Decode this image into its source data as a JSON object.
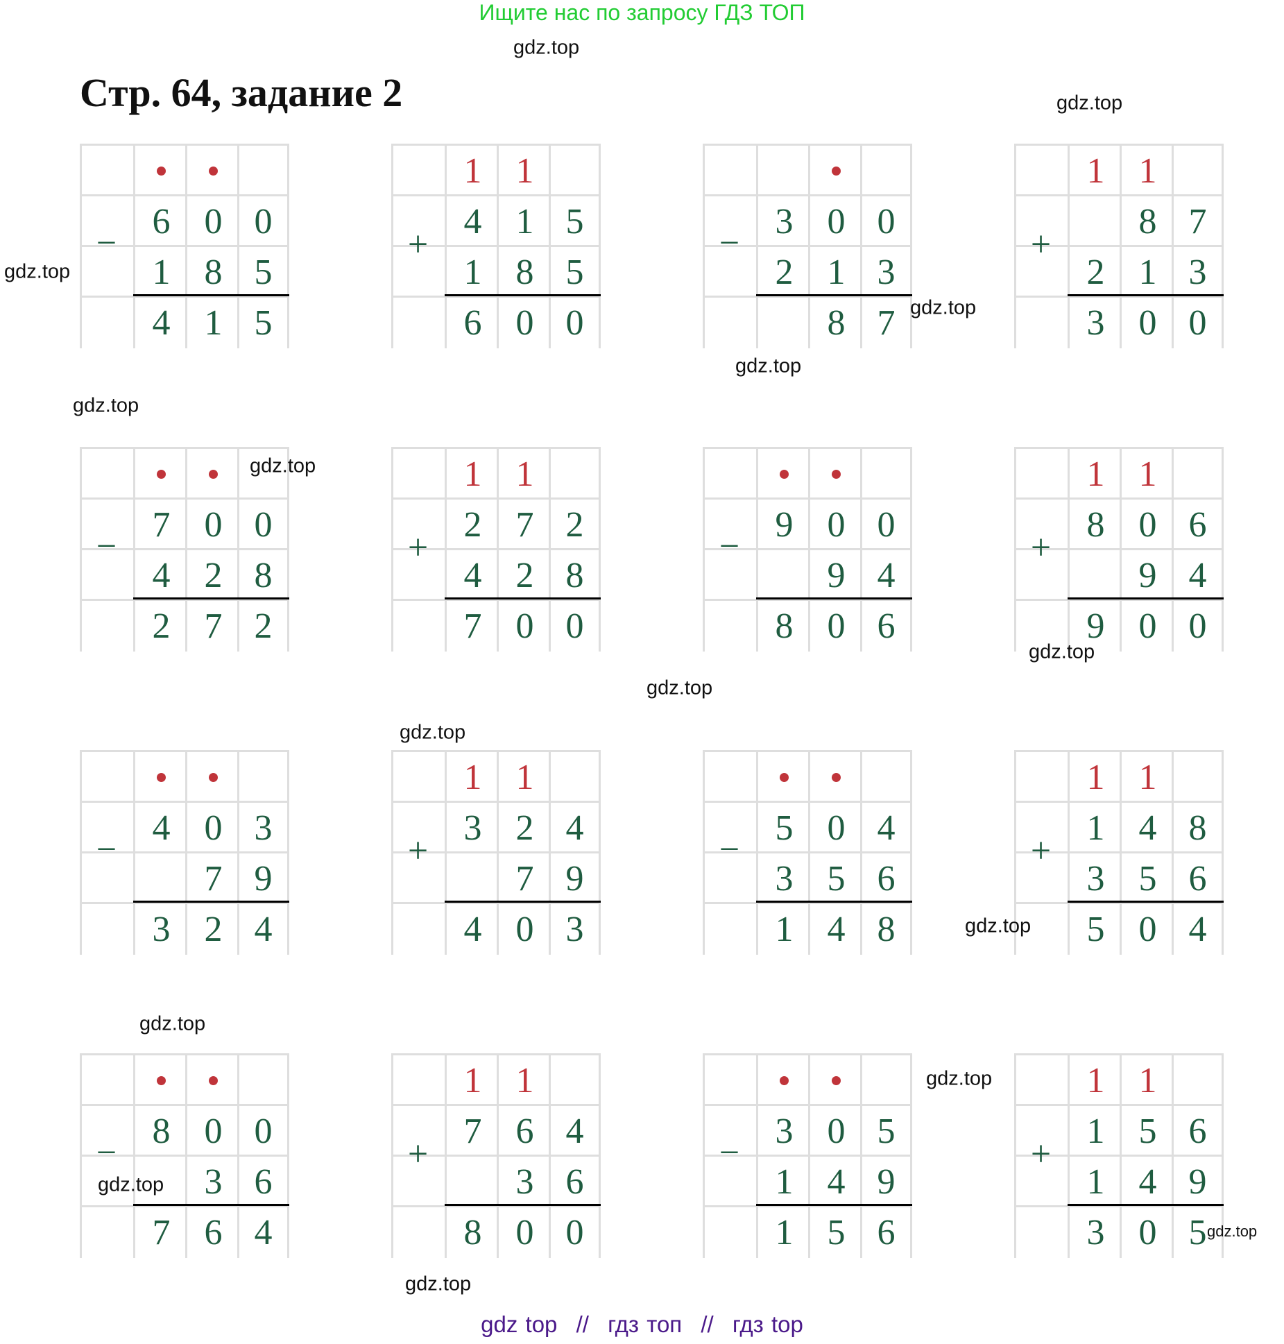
{
  "banner": "Ищите нас по запросу ГДЗ ТОП",
  "title": "Стр. 64, задание 2",
  "watermark": "gdz.top",
  "footer": [
    "gdz top",
    "//",
    "гдз топ",
    "//",
    "гдз top"
  ],
  "colors": {
    "digits": "#1f5c40",
    "carry": "#c0343a",
    "banner": "#22cc33",
    "footer": "#4b1a8a"
  },
  "examples": [
    {
      "op": "−",
      "carry": [
        "•",
        "•",
        ""
      ],
      "a": [
        "6",
        "0",
        "0"
      ],
      "b": [
        "1",
        "8",
        "5"
      ],
      "r": [
        "4",
        "1",
        "5"
      ]
    },
    {
      "op": "+",
      "carry": [
        "1",
        "1",
        ""
      ],
      "a": [
        "4",
        "1",
        "5"
      ],
      "b": [
        "1",
        "8",
        "5"
      ],
      "r": [
        "6",
        "0",
        "0"
      ]
    },
    {
      "op": "−",
      "carry": [
        "",
        "•",
        ""
      ],
      "a": [
        "3",
        "0",
        "0"
      ],
      "b": [
        "2",
        "1",
        "3"
      ],
      "r": [
        "",
        "8",
        "7"
      ]
    },
    {
      "op": "+",
      "carry": [
        "1",
        "1",
        ""
      ],
      "a": [
        "",
        "8",
        "7"
      ],
      "b": [
        "2",
        "1",
        "3"
      ],
      "r": [
        "3",
        "0",
        "0"
      ]
    },
    {
      "op": "−",
      "carry": [
        "•",
        "•",
        ""
      ],
      "a": [
        "7",
        "0",
        "0"
      ],
      "b": [
        "4",
        "2",
        "8"
      ],
      "r": [
        "2",
        "7",
        "2"
      ]
    },
    {
      "op": "+",
      "carry": [
        "1",
        "1",
        ""
      ],
      "a": [
        "2",
        "7",
        "2"
      ],
      "b": [
        "4",
        "2",
        "8"
      ],
      "r": [
        "7",
        "0",
        "0"
      ]
    },
    {
      "op": "−",
      "carry": [
        "•",
        "•",
        ""
      ],
      "a": [
        "9",
        "0",
        "0"
      ],
      "b": [
        "",
        "9",
        "4"
      ],
      "r": [
        "8",
        "0",
        "6"
      ]
    },
    {
      "op": "+",
      "carry": [
        "1",
        "1",
        ""
      ],
      "a": [
        "8",
        "0",
        "6"
      ],
      "b": [
        "",
        "9",
        "4"
      ],
      "r": [
        "9",
        "0",
        "0"
      ]
    },
    {
      "op": "−",
      "carry": [
        "•",
        "•",
        ""
      ],
      "a": [
        "4",
        "0",
        "3"
      ],
      "b": [
        "",
        "7",
        "9"
      ],
      "r": [
        "3",
        "2",
        "4"
      ]
    },
    {
      "op": "+",
      "carry": [
        "1",
        "1",
        ""
      ],
      "a": [
        "3",
        "2",
        "4"
      ],
      "b": [
        "",
        "7",
        "9"
      ],
      "r": [
        "4",
        "0",
        "3"
      ]
    },
    {
      "op": "−",
      "carry": [
        "•",
        "•",
        ""
      ],
      "a": [
        "5",
        "0",
        "4"
      ],
      "b": [
        "3",
        "5",
        "6"
      ],
      "r": [
        "1",
        "4",
        "8"
      ]
    },
    {
      "op": "+",
      "carry": [
        "1",
        "1",
        ""
      ],
      "a": [
        "1",
        "4",
        "8"
      ],
      "b": [
        "3",
        "5",
        "6"
      ],
      "r": [
        "5",
        "0",
        "4"
      ]
    },
    {
      "op": "−",
      "carry": [
        "•",
        "•",
        ""
      ],
      "a": [
        "8",
        "0",
        "0"
      ],
      "b": [
        "",
        "3",
        "6"
      ],
      "r": [
        "7",
        "6",
        "4"
      ]
    },
    {
      "op": "+",
      "carry": [
        "1",
        "1",
        ""
      ],
      "a": [
        "7",
        "6",
        "4"
      ],
      "b": [
        "",
        "3",
        "6"
      ],
      "r": [
        "8",
        "0",
        "0"
      ]
    },
    {
      "op": "−",
      "carry": [
        "•",
        "•",
        ""
      ],
      "a": [
        "3",
        "0",
        "5"
      ],
      "b": [
        "1",
        "4",
        "9"
      ],
      "r": [
        "1",
        "5",
        "6"
      ]
    },
    {
      "op": "+",
      "carry": [
        "1",
        "1",
        ""
      ],
      "a": [
        "1",
        "5",
        "6"
      ],
      "b": [
        "1",
        "4",
        "9"
      ],
      "r": [
        "3",
        "0",
        "5"
      ]
    }
  ]
}
